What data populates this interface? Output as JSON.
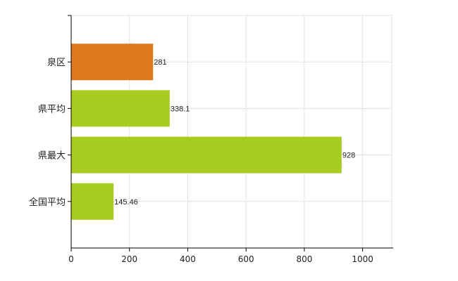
{
  "chart_data": {
    "type": "bar",
    "orientation": "horizontal",
    "categories": [
      "泉区",
      "県平均",
      "県最大",
      "全国平均"
    ],
    "values": [
      281,
      338.1,
      928,
      145.46
    ],
    "value_labels": [
      "281",
      "338.1",
      "928",
      "145.46"
    ],
    "bar_colors": [
      "#E07820",
      "#A8CC20",
      "#A8CC20",
      "#A8CC20"
    ],
    "xlim": [
      0,
      1100
    ],
    "x_ticks": [
      0,
      200,
      400,
      600,
      800,
      1000
    ],
    "x_tick_labels": [
      "0",
      "200",
      "400",
      "600",
      "800",
      "1000"
    ],
    "grid": true,
    "grid_style": "dotted",
    "title": "",
    "xlabel": "",
    "ylabel": ""
  }
}
